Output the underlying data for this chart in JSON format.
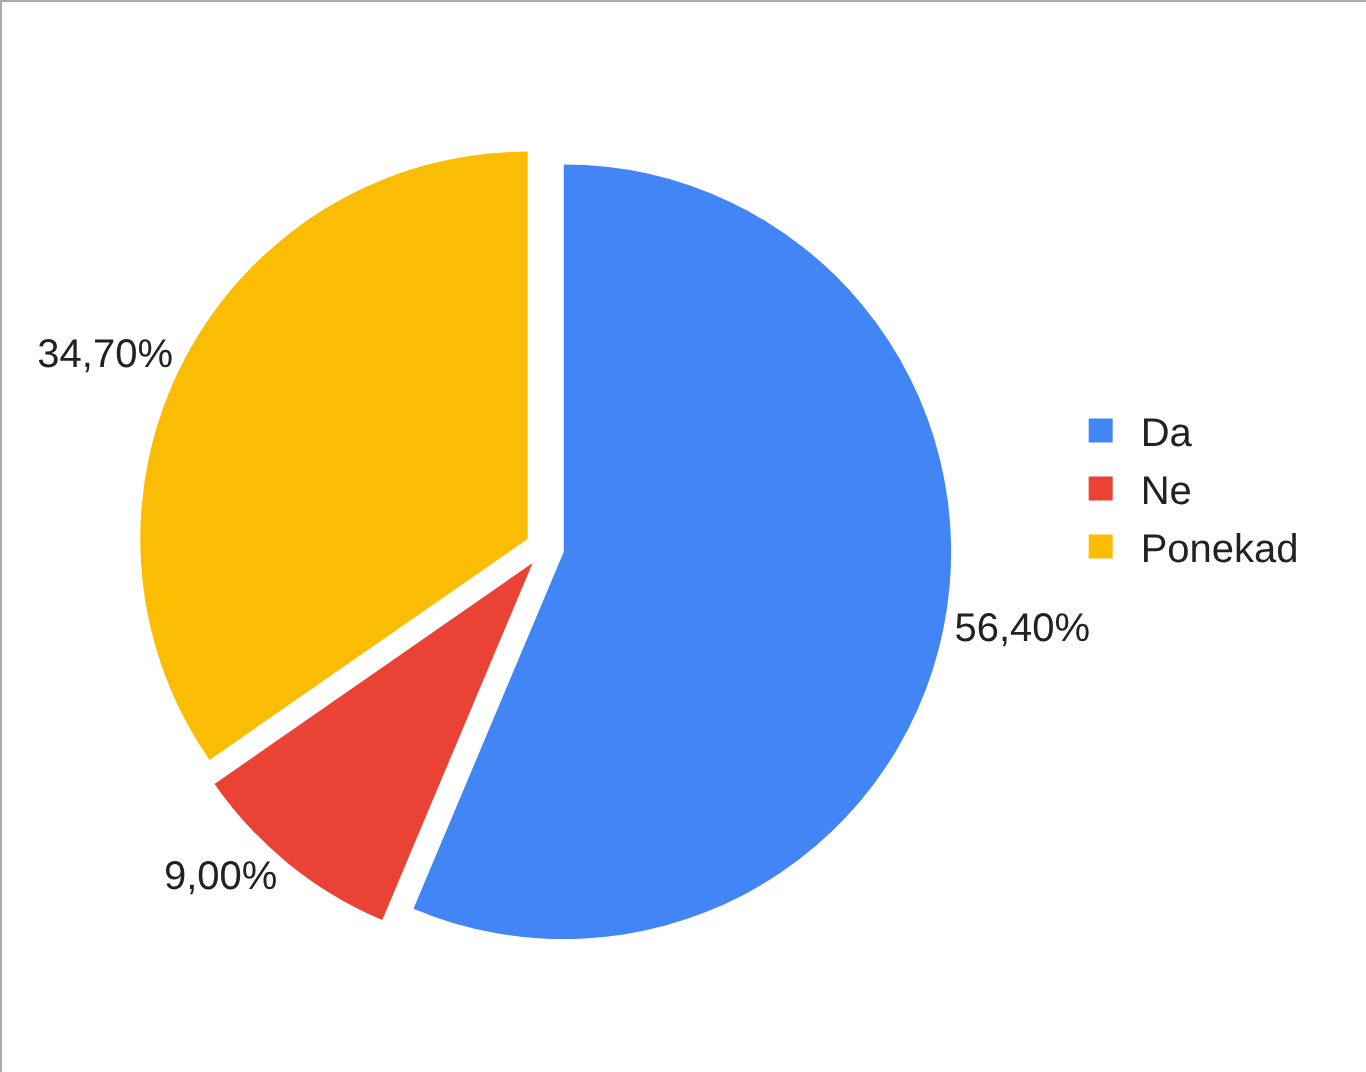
{
  "chart_data": {
    "type": "pie",
    "categories": [
      "Da",
      "Ne",
      "Ponekad"
    ],
    "values": [
      56.4,
      9.0,
      34.7
    ],
    "value_labels": [
      "56,40%",
      "9,00%",
      "34,70%"
    ],
    "colors": [
      "#4285f4",
      "#ea4335",
      "#fbbc04"
    ],
    "legend": "right"
  }
}
